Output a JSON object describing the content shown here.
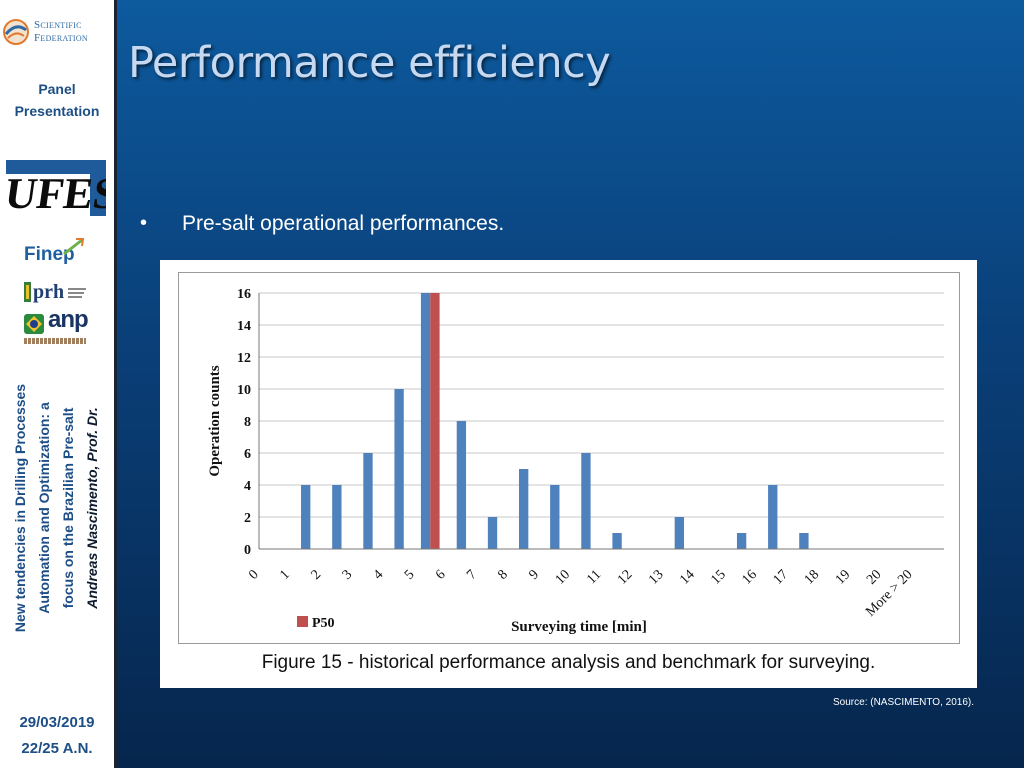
{
  "sidebar": {
    "brand": {
      "line1": "Scientific",
      "line2": "Federation"
    },
    "panel_label": {
      "line1": "Panel",
      "line2": "Presentation"
    },
    "logos": {
      "ufes": "UFES",
      "finep": "Finep",
      "prh": "prh",
      "anp": "anp"
    },
    "talk_title": {
      "line1": "New tendencies in Drilling Processes",
      "line2": "Automation and Optimization: a",
      "line3": "focus on the Brazilian Pre-salt",
      "author": "Andreas Nascimento, Prof. Dr."
    },
    "date": "29/03/2019",
    "page": "22/25  A.N."
  },
  "slide": {
    "title": "Performance efficiency",
    "bullet": "Pre-salt operational performances.",
    "caption": "Figure 15 - historical performance analysis and benchmark for surveying.",
    "source": "Source: (NASCIMENTO, 2016)."
  },
  "colors": {
    "bar": "#4f81bd",
    "highlight": "#c0504d",
    "title": "#c6d9f1"
  },
  "chart_data": {
    "type": "bar",
    "categories": [
      "0",
      "1",
      "2",
      "3",
      "4",
      "5",
      "6",
      "7",
      "8",
      "9",
      "10",
      "11",
      "12",
      "13",
      "14",
      "15",
      "16",
      "17",
      "18",
      "19",
      "20",
      "More > 20"
    ],
    "series": [
      {
        "values": [
          0,
          4,
          4,
          6,
          10,
          16,
          8,
          2,
          5,
          4,
          6,
          1,
          0,
          2,
          0,
          1,
          4,
          1,
          0,
          0,
          0,
          0
        ]
      }
    ],
    "highlight": {
      "category": "5",
      "value": 16,
      "legend_label": "P50"
    },
    "xlabel": "Surveying time [min]",
    "ylabel": "Operation counts",
    "ylim": [
      0,
      16
    ],
    "yticks": [
      0,
      2,
      4,
      6,
      8,
      10,
      12,
      14,
      16
    ],
    "grid": true,
    "legend": "bottom-left"
  }
}
